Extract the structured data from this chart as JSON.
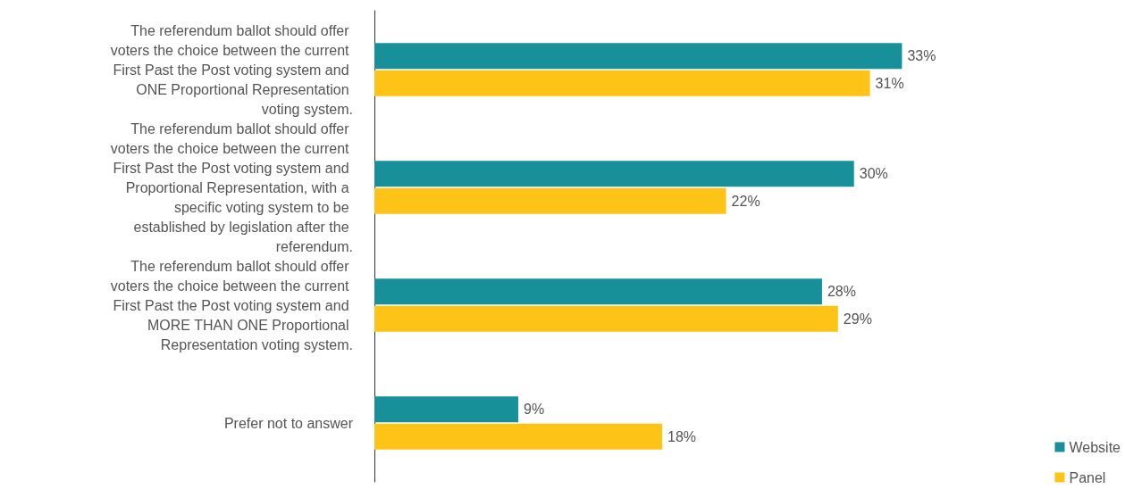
{
  "chart_data": {
    "type": "bar",
    "orientation": "horizontal",
    "legend": "bottom right",
    "categories": [
      "The referendum ballot should offer voters the choice between the current First Past the Post voting system and ONE Proportional Representation voting system.",
      "The referendum ballot should offer voters the choice between the current First Past the Post voting system and Proportional Representation, with a specific voting system to be established by legislation after the referendum.",
      "The referendum ballot should offer voters the choice between the current First Past the Post voting system and MORE THAN ONE Proportional Representation voting system.",
      "Prefer not to answer"
    ],
    "series": [
      {
        "name": "Website",
        "color": "#17909a",
        "values": [
          33,
          30,
          28,
          9
        ],
        "value_labels": [
          "33%",
          "30%",
          "28%",
          "9%"
        ]
      },
      {
        "name": "Panel",
        "color": "#fdc417",
        "values": [
          31,
          22,
          29,
          18
        ],
        "value_labels": [
          "31%",
          "22%",
          "29%",
          "18%"
        ]
      }
    ]
  }
}
